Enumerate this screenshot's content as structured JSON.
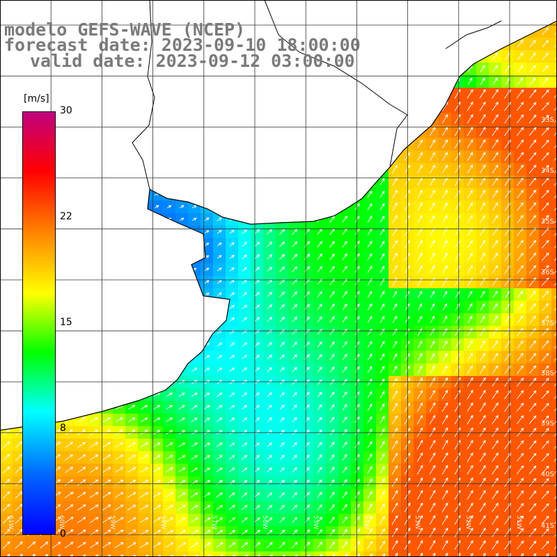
{
  "title": {
    "line1": "modelo GEFS-WAVE (NCEP)",
    "line2": "forecast date: 2023-09-10 18:00:00",
    "line3": "valid date: 2023-09-12 03:00:00"
  },
  "colorbar": {
    "unit": "[m/s]",
    "ticks": [
      "30",
      "22",
      "15",
      "8",
      "0"
    ],
    "colors": [
      "#c00080",
      "#ff0000",
      "#ff8800",
      "#ffff00",
      "#00ff00",
      "#00ffff",
      "#0066ff",
      "#0000ff"
    ]
  },
  "lat_labels": [
    "33S",
    "34S",
    "35S",
    "36S",
    "37S",
    "38S",
    "39S",
    "40S",
    "41S"
  ],
  "lon_labels": [
    "61W",
    "60W",
    "59W",
    "58W",
    "57W",
    "56W",
    "55W",
    "54W",
    "53W",
    "52W",
    "51W"
  ],
  "map": {
    "land_color": "#ffffff",
    "grid_color": "#333333",
    "coast_color": "#000000",
    "arrow_color": "#ffffff"
  }
}
